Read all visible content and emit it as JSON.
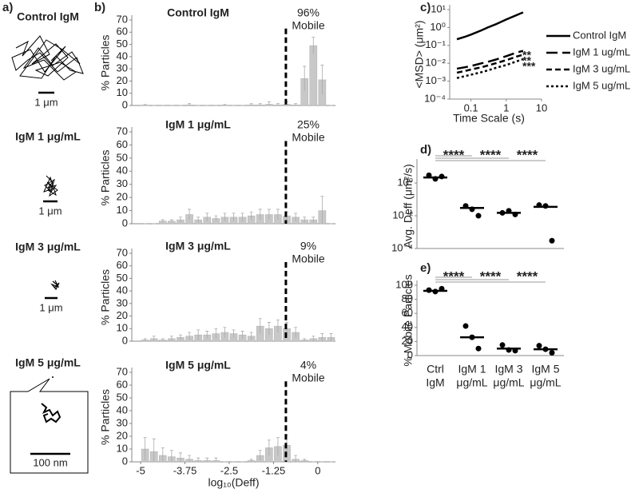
{
  "panel_labels": [
    "a)",
    "b)",
    "c)",
    "d)",
    "e)"
  ],
  "trajectories": [
    {
      "title": "Control IgM",
      "scale": "1 μm"
    },
    {
      "title": "IgM 1 μg/mL",
      "scale": "1 μm"
    },
    {
      "title": "IgM 3 μg/mL",
      "scale": "1 μm"
    },
    {
      "title": "IgM 5 μg/mL",
      "scale": "100 nm"
    }
  ],
  "chart_data": [
    {
      "type": "histogram",
      "title": "Control IgM",
      "annotation": [
        "96%",
        "Mobile"
      ],
      "ylabel": "% Particles",
      "color": "#c8c8c8",
      "bins": [
        -5,
        -4.75,
        -4.5,
        -4.25,
        -4,
        -3.75,
        -3.5,
        -3.25,
        -3,
        -2.75,
        -2.5,
        -2.25,
        -2,
        -1.75,
        -1.5,
        -1.25,
        -1,
        -0.75,
        -0.5,
        -0.25,
        0,
        0.25,
        0.5
      ],
      "values": [
        0.3,
        0,
        0,
        0,
        0,
        0.5,
        0,
        0,
        0,
        0.3,
        0,
        0,
        0.5,
        0.5,
        1,
        0.5,
        1,
        0.5,
        22,
        49,
        21,
        0
      ],
      "errors": [
        0.5,
        0,
        0,
        0,
        0,
        1,
        0,
        0,
        0,
        0.5,
        0,
        0,
        1,
        1,
        2,
        1,
        2,
        1,
        10,
        7,
        12,
        0
      ],
      "threshold": -0.9,
      "xlim": [
        -5.25,
        0.5
      ],
      "ylim": [
        0,
        70
      ],
      "yticks": [
        0,
        10,
        20,
        30,
        40,
        50,
        60,
        70
      ]
    },
    {
      "type": "histogram",
      "title": "IgM 1 μg/mL",
      "annotation": [
        "25%",
        "Mobile"
      ],
      "ylabel": "% Particles",
      "color": "#c8c8c8",
      "bins": [
        -5,
        -4.75,
        -4.5,
        -4.25,
        -4,
        -3.75,
        -3.5,
        -3.25,
        -3,
        -2.75,
        -2.5,
        -2.25,
        -2,
        -1.75,
        -1.5,
        -1.25,
        -1,
        -0.75,
        -0.5,
        -0.25,
        0,
        0.25,
        0.5
      ],
      "values": [
        0,
        0,
        2,
        2,
        3,
        7,
        3,
        5,
        4,
        5,
        5,
        5,
        6,
        7,
        7,
        7,
        6,
        5,
        3,
        3,
        10,
        0
      ],
      "errors": [
        0,
        0,
        1,
        1,
        2,
        4,
        2,
        3,
        2,
        3,
        3,
        3,
        3,
        4,
        4,
        4,
        3,
        3,
        2,
        2,
        11,
        0
      ],
      "threshold": -0.9,
      "xlim": [
        -5.25,
        0.5
      ],
      "ylim": [
        0,
        70
      ],
      "yticks": [
        0,
        10,
        20,
        30,
        40,
        50,
        60,
        70
      ]
    },
    {
      "type": "histogram",
      "title": "IgM 3 μg/mL",
      "annotation": [
        "9%",
        "Mobile"
      ],
      "ylabel": "% Particles",
      "color": "#c8c8c8",
      "bins": [
        -5,
        -4.75,
        -4.5,
        -4.25,
        -4,
        -3.75,
        -3.5,
        -3.25,
        -3,
        -2.75,
        -2.5,
        -2.25,
        -2,
        -1.75,
        -1.5,
        -1.25,
        -1,
        -0.75,
        -0.5,
        -0.25,
        0,
        0.25,
        0.5
      ],
      "values": [
        1,
        2,
        1,
        2,
        3,
        4,
        5,
        5,
        6,
        7,
        6,
        5,
        4,
        12,
        10,
        12,
        10,
        7,
        1,
        2,
        3,
        3
      ],
      "errors": [
        1,
        2,
        1,
        2,
        2,
        3,
        4,
        3,
        4,
        4,
        3,
        3,
        3,
        6,
        5,
        5,
        5,
        4,
        1,
        2,
        3,
        3
      ],
      "threshold": -0.9,
      "xlim": [
        -5.25,
        0.5
      ],
      "ylim": [
        0,
        70
      ],
      "yticks": [
        0,
        10,
        20,
        30,
        40,
        50,
        60,
        70
      ]
    },
    {
      "type": "histogram",
      "title": "IgM 5 μg/mL",
      "annotation": [
        "4%",
        "Mobile"
      ],
      "ylabel": "% Particles",
      "color": "#c8c8c8",
      "bins": [
        -5,
        -4.75,
        -4.5,
        -4.25,
        -4,
        -3.75,
        -3.5,
        -3.25,
        -3,
        -2.75,
        -2.5,
        -2.25,
        -2,
        -1.75,
        -1.5,
        -1.25,
        -1,
        -0.75,
        -0.5,
        -0.25,
        0,
        0.25,
        0.5
      ],
      "values": [
        10,
        8,
        5,
        4,
        3,
        2,
        1,
        1,
        1,
        0,
        0,
        0,
        1,
        5,
        11,
        12,
        13,
        2,
        1,
        0,
        0,
        0
      ],
      "errors": [
        9,
        10,
        6,
        5,
        4,
        3,
        2,
        2,
        2,
        0,
        0,
        0,
        1,
        4,
        6,
        7,
        8,
        3,
        1,
        0,
        0,
        0
      ],
      "threshold": -0.9,
      "xlim": [
        -5.25,
        0.5
      ],
      "ylim": [
        0,
        70
      ],
      "yticks": [
        0,
        10,
        20,
        30,
        40,
        50,
        60,
        70
      ],
      "xticks": [
        -5,
        -3.75,
        -2.5,
        -1.25,
        0
      ],
      "xlabel": "log₁₀(Deff)"
    },
    {
      "type": "line",
      "xlabel": "Time Scale (s)",
      "ylabel": "<MSD> (μm²)",
      "log_x": true,
      "log_y": true,
      "x": [
        0.04,
        0.067,
        0.1,
        0.2,
        0.3,
        0.5,
        1,
        2,
        3
      ],
      "series": [
        {
          "name": "Control IgM",
          "color": "#000000",
          "dash": "none",
          "values": [
            0.22,
            0.3,
            0.4,
            0.7,
            1,
            1.5,
            2.8,
            5,
            7
          ]
        },
        {
          "name": "IgM 1 ug/mL",
          "color": "#000000",
          "dash": "14 6",
          "values": [
            0.005,
            0.006,
            0.007,
            0.01,
            0.012,
            0.016,
            0.025,
            0.04,
            0.05
          ]
        },
        {
          "name": "IgM 3 ug/mL",
          "color": "#000000",
          "dash": "7 4",
          "values": [
            0.003,
            0.0037,
            0.0045,
            0.006,
            0.0075,
            0.01,
            0.015,
            0.024,
            0.03
          ]
        },
        {
          "name": "IgM 5 ug/mL",
          "color": "#000000",
          "dash": "3 3",
          "values": [
            0.0015,
            0.0019,
            0.0023,
            0.0032,
            0.004,
            0.0055,
            0.008,
            0.013,
            0.017
          ]
        }
      ],
      "annotations": [
        "**",
        "**",
        "***"
      ],
      "xlim": [
        0.025,
        10
      ],
      "xticks": [
        0.1,
        1,
        10
      ],
      "ylim": [
        0.0001,
        10
      ],
      "yticks": [
        {
          "value": 10,
          "label": "10¹"
        },
        {
          "value": 1,
          "label": "10⁰"
        },
        {
          "value": 0.1,
          "label": "10⁻¹"
        },
        {
          "value": 0.01,
          "label": "10⁻²"
        },
        {
          "value": 0.001,
          "label": "10⁻³"
        },
        {
          "value": 0.0001,
          "label": "10⁻⁴"
        }
      ]
    },
    {
      "type": "dot",
      "ylabel": "Avg. Deff (μm²/s)",
      "log_y": true,
      "color": "#000000",
      "points": [
        [
          3,
          1.8,
          2.5
        ],
        [
          0.04,
          0.025,
          0.01
        ],
        [
          0.015,
          0.02,
          0.012
        ],
        [
          0.045,
          0.04,
          0.0003
        ]
      ],
      "means": [
        2.2,
        0.03,
        0.015,
        0.035
      ],
      "significance": [
        "****",
        "****",
        "****"
      ],
      "ylim": [
        0.0001,
        15
      ],
      "yticks": [
        {
          "value": 1,
          "label": "10⁰"
        },
        {
          "value": 0.01,
          "label": "10⁻²"
        },
        {
          "value": 0.0001,
          "label": "10⁻⁴"
        }
      ]
    },
    {
      "type": "dot",
      "ylabel": "% Mobile Particles",
      "color": "#000000",
      "categories": [
        [
          "Ctrl",
          "IgM"
        ],
        [
          "IgM 1",
          "μg/mL"
        ],
        [
          "IgM 3",
          "μg/mL"
        ],
        [
          "IgM 5",
          "μg/mL"
        ]
      ],
      "points": [
        [
          93,
          91,
          95
        ],
        [
          42,
          26,
          10
        ],
        [
          15,
          8,
          7
        ],
        [
          14,
          9,
          4
        ]
      ],
      "means": [
        92,
        26,
        10,
        9
      ],
      "significance": [
        "****",
        "****",
        "****"
      ],
      "ylim": [
        0,
        100
      ],
      "yticks": [
        0,
        20,
        40,
        60,
        80,
        100
      ]
    }
  ]
}
